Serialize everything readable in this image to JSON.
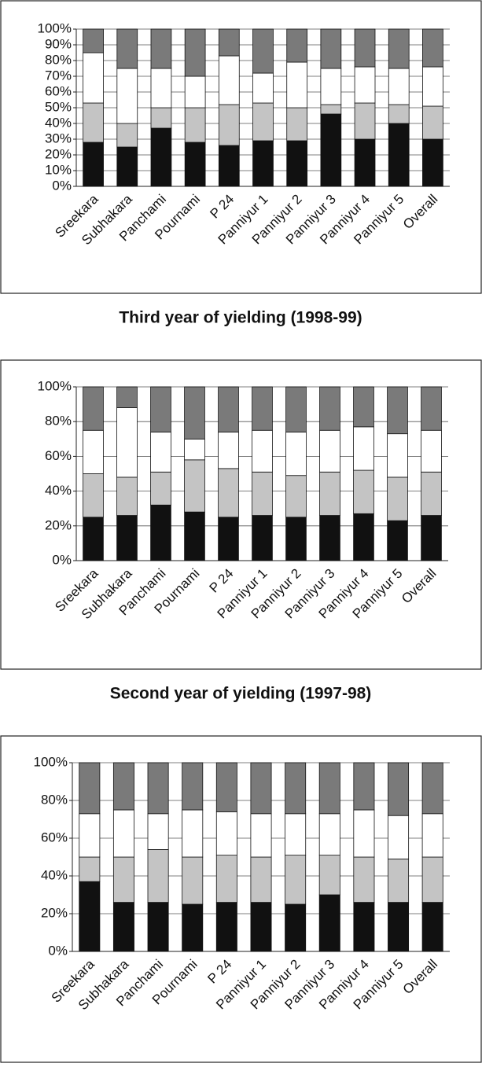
{
  "chart_data": [
    {
      "type": "bar",
      "stacked": true,
      "grid": true,
      "categories": [
        "Sreekara",
        "Subhakara",
        "Panchami",
        "Pournami",
        "P 24",
        "Panniyur 1",
        "Panniyur 2",
        "Panniyur 3",
        "Panniyur 4",
        "Panniyur 5",
        "Overall"
      ],
      "series": [
        {
          "color": "#111111",
          "values": [
            28,
            25,
            37,
            28,
            26,
            29,
            29,
            46,
            30,
            40,
            30
          ]
        },
        {
          "color": "#c4c4c4",
          "values": [
            25,
            15,
            13,
            22,
            26,
            24,
            21,
            6,
            23,
            12,
            21
          ]
        },
        {
          "color": "#ffffff",
          "values": [
            32,
            35,
            25,
            20,
            31,
            19,
            29,
            23,
            23,
            23,
            25
          ]
        },
        {
          "color": "#7a7a7a",
          "values": [
            15,
            25,
            25,
            30,
            17,
            28,
            21,
            25,
            24,
            25,
            24
          ]
        }
      ],
      "ylim": [
        0,
        100
      ],
      "yticks": [
        {
          "value": 0,
          "label": "0%"
        },
        {
          "value": 10,
          "label": "10%"
        },
        {
          "value": 20,
          "label": "20%"
        },
        {
          "value": 30,
          "label": "30%"
        },
        {
          "value": 40,
          "label": "40%"
        },
        {
          "value": 50,
          "label": "50%"
        },
        {
          "value": 60,
          "label": "60%"
        },
        {
          "value": 70,
          "label": "70%"
        },
        {
          "value": 80,
          "label": "80%"
        },
        {
          "value": 90,
          "label": "90%"
        },
        {
          "value": 100,
          "label": "100%"
        }
      ]
    },
    {
      "type": "bar",
      "stacked": true,
      "grid": true,
      "title": "Third year of yielding (1998-99)",
      "categories": [
        "Sreekara",
        "Subhakara",
        "Panchami",
        "Pournami",
        "P 24",
        "Panniyur 1",
        "Panniyur 2",
        "Panniyur 3",
        "Panniyur 4",
        "Panniyur 5",
        "Overall"
      ],
      "series": [
        {
          "color": "#111111",
          "values": [
            25,
            26,
            32,
            28,
            25,
            26,
            25,
            26,
            27,
            23,
            26
          ]
        },
        {
          "color": "#c4c4c4",
          "values": [
            25,
            22,
            19,
            30,
            28,
            25,
            24,
            25,
            25,
            25,
            25
          ]
        },
        {
          "color": "#ffffff",
          "values": [
            25,
            40,
            23,
            12,
            21,
            24,
            25,
            24,
            25,
            25,
            24
          ]
        },
        {
          "color": "#7a7a7a",
          "values": [
            25,
            12,
            26,
            30,
            26,
            25,
            26,
            25,
            23,
            27,
            25
          ]
        }
      ],
      "ylim": [
        0,
        100
      ],
      "yticks": [
        {
          "value": 0,
          "label": "0%"
        },
        {
          "value": 20,
          "label": "20%"
        },
        {
          "value": 40,
          "label": "40%"
        },
        {
          "value": 60,
          "label": "60%"
        },
        {
          "value": 80,
          "label": "80%"
        },
        {
          "value": 100,
          "label": "100%"
        }
      ]
    },
    {
      "type": "bar",
      "stacked": true,
      "grid": true,
      "title": "Second year of yielding (1997-98)",
      "categories": [
        "Sreekara",
        "Subhakara",
        "Panchami",
        "Pournami",
        "P 24",
        "Panniyur 1",
        "Panniyur 2",
        "Panniyur 3",
        "Panniyur 4",
        "Panniyur 5",
        "Overall"
      ],
      "series": [
        {
          "color": "#111111",
          "values": [
            37,
            26,
            26,
            25,
            26,
            26,
            25,
            30,
            26,
            26,
            26
          ]
        },
        {
          "color": "#c4c4c4",
          "values": [
            13,
            24,
            28,
            25,
            25,
            24,
            26,
            21,
            24,
            23,
            24
          ]
        },
        {
          "color": "#ffffff",
          "values": [
            23,
            25,
            19,
            25,
            23,
            23,
            22,
            22,
            25,
            23,
            23
          ]
        },
        {
          "color": "#7a7a7a",
          "values": [
            27,
            25,
            27,
            25,
            26,
            27,
            27,
            27,
            25,
            28,
            27
          ]
        }
      ],
      "ylim": [
        0,
        100
      ],
      "yticks": [
        {
          "value": 0,
          "label": "0%"
        },
        {
          "value": 20,
          "label": "20%"
        },
        {
          "value": 40,
          "label": "40%"
        },
        {
          "value": 60,
          "label": "60%"
        },
        {
          "value": 80,
          "label": "80%"
        },
        {
          "value": 100,
          "label": "100%"
        }
      ]
    }
  ]
}
